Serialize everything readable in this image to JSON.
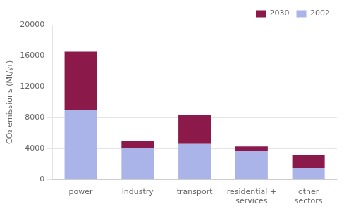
{
  "chart_data": {
    "type": "bar",
    "stacked": true,
    "categories": [
      "power",
      "industry",
      "transport",
      "residential +\nservices",
      "other\nsectors"
    ],
    "series": [
      {
        "name": "2002",
        "color": "#aab4e8",
        "values": [
          9000,
          4100,
          4600,
          3700,
          1500
        ]
      },
      {
        "name": "2030",
        "color": "#8b1a4a",
        "values": [
          7500,
          900,
          3700,
          600,
          1700
        ]
      }
    ],
    "ylabel": "CO₂ emissions (Mt/yr)",
    "ylim": [
      0,
      20000
    ],
    "yticks": [
      0,
      4000,
      8000,
      12000,
      16000,
      20000
    ],
    "grid": true,
    "legend": "upper right"
  }
}
